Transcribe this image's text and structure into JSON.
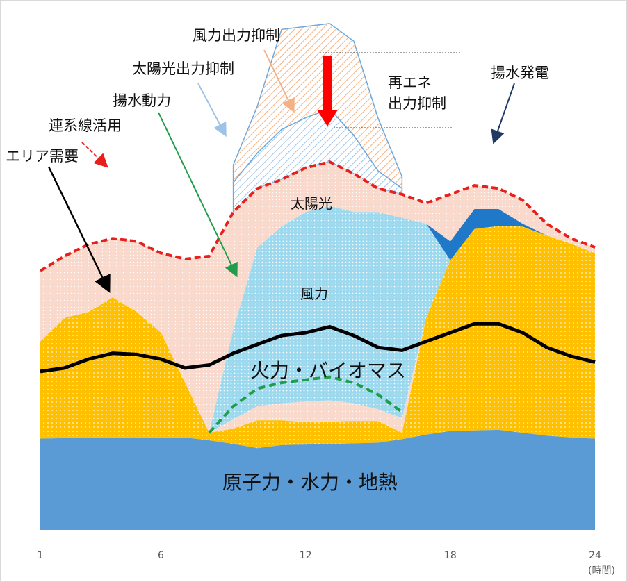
{
  "chart_data": {
    "type": "area",
    "x": [
      1,
      2,
      3,
      4,
      5,
      6,
      7,
      8,
      9,
      10,
      11,
      12,
      13,
      14,
      15,
      16,
      17,
      18,
      19,
      20,
      21,
      22,
      23,
      24
    ],
    "xticks": [
      "1",
      "6",
      "12",
      "18",
      "24"
    ],
    "xunit": "(時間)",
    "series": [
      {
        "name": "原子力・水力・地熱",
        "values": [
          155,
          156,
          156,
          156,
          157,
          157,
          157,
          152,
          146,
          139,
          144,
          145,
          146,
          147,
          148,
          154,
          162,
          168,
          169,
          170,
          165,
          160,
          157,
          155
        ]
      },
      {
        "name": "火力・バイオマス",
        "values": [
          320,
          360,
          370,
          395,
          370,
          335,
          250,
          165,
          172,
          186,
          186,
          183,
          184,
          185,
          185,
          165,
          360,
          458,
          511,
          516,
          515,
          500,
          486,
          470
        ]
      },
      {
        "name": "風力",
        "values": [
          320,
          360,
          370,
          395,
          370,
          335,
          250,
          165,
          188,
          210,
          215,
          218,
          220,
          215,
          205,
          190,
          360,
          458,
          511,
          516,
          515,
          500,
          486,
          470
        ]
      },
      {
        "name": "太陽光",
        "values": [
          320,
          360,
          370,
          395,
          370,
          335,
          250,
          165,
          340,
          480,
          515,
          540,
          550,
          540,
          540,
          530,
          520,
          458,
          511,
          516,
          515,
          500,
          486,
          470
        ]
      },
      {
        "name": "揚水発電",
        "values": [
          320,
          360,
          370,
          395,
          370,
          335,
          250,
          165,
          340,
          480,
          515,
          540,
          550,
          540,
          540,
          530,
          520,
          490,
          545,
          545,
          520,
          500,
          486,
          470
        ]
      },
      {
        "name": "連系線活用",
        "values": [
          440,
          465,
          485,
          495,
          490,
          470,
          460,
          465,
          540,
          580,
          595,
          615,
          625,
          605,
          580,
          570,
          555,
          570,
          585,
          580,
          560,
          520,
          495,
          480
        ]
      },
      {
        "name": "太陽光出力抑制",
        "values": [
          null,
          null,
          null,
          null,
          null,
          null,
          null,
          null,
          590,
          640,
          680,
          700,
          715,
          670,
          610,
          580,
          null,
          null,
          null,
          null,
          null,
          null,
          null,
          null
        ]
      },
      {
        "name": "風力出力抑制",
        "values": [
          null,
          null,
          null,
          null,
          null,
          null,
          null,
          null,
          620,
          720,
          850,
          855,
          860,
          830,
          700,
          600,
          null,
          null,
          null,
          null,
          null,
          null,
          null,
          null
        ]
      }
    ],
    "lines": [
      {
        "name": "エリア需要",
        "values": [
          269,
          275,
          290,
          300,
          298,
          290,
          275,
          280,
          300,
          315,
          330,
          335,
          345,
          330,
          310,
          305,
          320,
          335,
          350,
          350,
          335,
          310,
          295,
          285
        ]
      },
      {
        "name": "揚水動力",
        "values": [
          null,
          null,
          null,
          null,
          null,
          null,
          null,
          165,
          210,
          240,
          250,
          255,
          260,
          250,
          230,
          200,
          null,
          null,
          null,
          null,
          null,
          null,
          null,
          null
        ]
      }
    ],
    "annotations": [
      "風力出力抑制",
      "太陽光出力抑制",
      "揚水動力",
      "連系線活用",
      "エリア需要",
      "再エネ",
      "出力抑制",
      "揚水発電",
      "太陽光",
      "風力",
      "火力・バイオマス",
      "原子力・水力・地熱"
    ],
    "ylim": [
      0,
      900
    ],
    "colors": {
      "nuclear": "#5b9bd5",
      "thermal": "#ffc000",
      "wind": "#f8cbad",
      "solar": "#9dd9ee",
      "pumped_gen": "#1f78c8",
      "interconnect": "#f9d9cc",
      "curtail_solar": "#9dc3e6",
      "curtail_wind": "#f4b183",
      "demand": "#000000",
      "pumping": "#1f9d4a",
      "interconnect_line": "#e8201c",
      "arrow": "#ff0000"
    }
  }
}
